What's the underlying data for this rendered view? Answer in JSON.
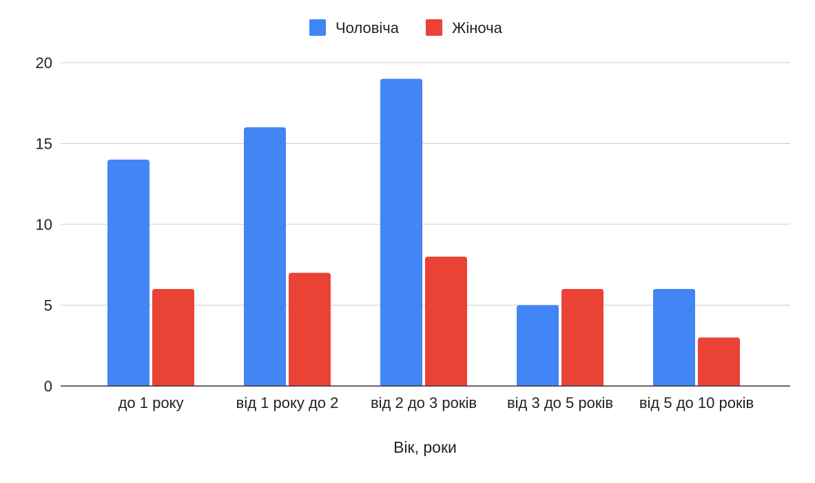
{
  "chart_data": {
    "type": "bar",
    "categories": [
      "до 1 року",
      "від 1 року до 2",
      "від 2 до 3 років",
      "від 3 до 5 років",
      "від 5 до 10 років"
    ],
    "series": [
      {
        "name": "Чоловіча",
        "values": [
          14,
          16,
          19,
          5,
          6
        ],
        "color": "#4285F4"
      },
      {
        "name": "Жіноча",
        "values": [
          6,
          7,
          8,
          6,
          3
        ],
        "color": "#EA4335"
      }
    ],
    "title": "",
    "xlabel": "Вік, роки",
    "ylabel": "",
    "ylim": [
      0,
      20
    ],
    "yticks": [
      0,
      5,
      10,
      15,
      20
    ],
    "grid": true,
    "legend_position": "top-center",
    "gridline_color": "#cccccc",
    "axis_color": "#333333"
  }
}
